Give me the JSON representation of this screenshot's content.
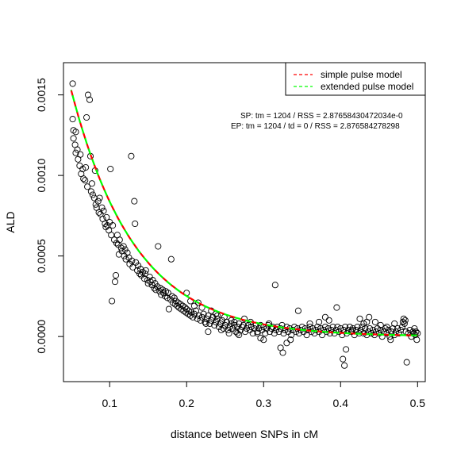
{
  "chart_data": {
    "type": "scatter",
    "xlabel": "distance between SNPs in cM",
    "ylabel": "ALD",
    "xlim": [
      0.04,
      0.51
    ],
    "ylim": [
      -0.00028,
      0.0017
    ],
    "x_ticks": [
      0.1,
      0.2,
      0.3,
      0.4,
      0.5
    ],
    "x_tick_labels": [
      "0.1",
      "0.2",
      "0.3",
      "0.4",
      "0.5"
    ],
    "y_ticks": [
      0.0,
      0.0005,
      0.001,
      0.0015
    ],
    "y_tick_labels": [
      "0.0000",
      "0.0005",
      "0.0010",
      "0.0015"
    ],
    "grid": false,
    "legend_position": "top-right",
    "legend": [
      {
        "label": "simple pulse model",
        "color": "#ff0000",
        "dash": true
      },
      {
        "label": "extended pulse model",
        "color": "#00ff00",
        "dash": true
      }
    ],
    "annotations": [
      "SP:  tm =  1204 / RSS =  2.87658430472034e-0",
      "EP:  tm =  1204 / td =  0 / RSS =  2.876584278298"
    ],
    "model": {
      "a": 0.00153,
      "k": 12.04,
      "c": 0.0
    },
    "points": [
      [
        0.052,
        0.00157
      ],
      [
        0.052,
        0.00135
      ],
      [
        0.053,
        0.00128
      ],
      [
        0.053,
        0.00123
      ],
      [
        0.055,
        0.00119
      ],
      [
        0.056,
        0.00127
      ],
      [
        0.056,
        0.00114
      ],
      [
        0.058,
        0.00116
      ],
      [
        0.059,
        0.0011
      ],
      [
        0.061,
        0.00106
      ],
      [
        0.062,
        0.00113
      ],
      [
        0.063,
        0.00101
      ],
      [
        0.065,
        0.00104
      ],
      [
        0.066,
        0.00098
      ],
      [
        0.068,
        0.00097
      ],
      [
        0.069,
        0.00105
      ],
      [
        0.07,
        0.00136
      ],
      [
        0.071,
        0.00093
      ],
      [
        0.072,
        0.0015
      ],
      [
        0.074,
        0.00147
      ],
      [
        0.075,
        0.00112
      ],
      [
        0.076,
        0.0009
      ],
      [
        0.077,
        0.00095
      ],
      [
        0.078,
        0.00088
      ],
      [
        0.08,
        0.00086
      ],
      [
        0.081,
        0.00103
      ],
      [
        0.082,
        0.00082
      ],
      [
        0.083,
        0.0008
      ],
      [
        0.085,
        0.00084
      ],
      [
        0.086,
        0.00077
      ],
      [
        0.087,
        0.00086
      ],
      [
        0.088,
        0.00076
      ],
      [
        0.09,
        0.0008
      ],
      [
        0.091,
        0.00073
      ],
      [
        0.092,
        0.00078
      ],
      [
        0.094,
        0.0007
      ],
      [
        0.095,
        0.00068
      ],
      [
        0.096,
        0.00074
      ],
      [
        0.097,
        0.00069
      ],
      [
        0.099,
        0.00066
      ],
      [
        0.1,
        0.00071
      ],
      [
        0.101,
        0.00104
      ],
      [
        0.102,
        0.00063
      ],
      [
        0.103,
        0.00022
      ],
      [
        0.104,
        0.00069
      ],
      [
        0.106,
        0.0006
      ],
      [
        0.107,
        0.00034
      ],
      [
        0.108,
        0.00038
      ],
      [
        0.109,
        0.00058
      ],
      [
        0.11,
        0.00063
      ],
      [
        0.111,
        0.00057
      ],
      [
        0.112,
        0.00051
      ],
      [
        0.113,
        0.0006
      ],
      [
        0.115,
        0.00055
      ],
      [
        0.116,
        0.00053
      ],
      [
        0.118,
        0.00056
      ],
      [
        0.119,
        0.0005
      ],
      [
        0.12,
        0.00054
      ],
      [
        0.121,
        0.00048
      ],
      [
        0.123,
        0.00052
      ],
      [
        0.125,
        0.00049
      ],
      [
        0.126,
        0.00045
      ],
      [
        0.128,
        0.00112
      ],
      [
        0.129,
        0.00047
      ],
      [
        0.13,
        0.00043
      ],
      [
        0.132,
        0.00084
      ],
      [
        0.133,
        0.0007
      ],
      [
        0.134,
        0.00046
      ],
      [
        0.136,
        0.00041
      ],
      [
        0.137,
        0.00044
      ],
      [
        0.139,
        0.00039
      ],
      [
        0.14,
        0.00042
      ],
      [
        0.141,
        0.00038
      ],
      [
        0.143,
        0.0004
      ],
      [
        0.145,
        0.00036
      ],
      [
        0.146,
        0.00039
      ],
      [
        0.147,
        0.00041
      ],
      [
        0.149,
        0.00035
      ],
      [
        0.15,
        0.00033
      ],
      [
        0.152,
        0.00037
      ],
      [
        0.153,
        0.00034
      ],
      [
        0.155,
        0.00032
      ],
      [
        0.156,
        0.00035
      ],
      [
        0.158,
        0.0003
      ],
      [
        0.159,
        0.00033
      ],
      [
        0.16,
        0.00029
      ],
      [
        0.162,
        0.00031
      ],
      [
        0.163,
        0.00056
      ],
      [
        0.165,
        0.00028
      ],
      [
        0.166,
        0.0003
      ],
      [
        0.167,
        0.00026
      ],
      [
        0.169,
        0.00029
      ],
      [
        0.17,
        0.00027
      ],
      [
        0.172,
        0.00025
      ],
      [
        0.173,
        0.00028
      ],
      [
        0.175,
        0.00024
      ],
      [
        0.176,
        0.00027
      ],
      [
        0.177,
        0.00017
      ],
      [
        0.179,
        0.00023
      ],
      [
        0.18,
        0.00048
      ],
      [
        0.181,
        0.00025
      ],
      [
        0.182,
        0.00021
      ],
      [
        0.184,
        0.00024
      ],
      [
        0.185,
        0.0002
      ],
      [
        0.186,
        0.00022
      ],
      [
        0.188,
        0.00019
      ],
      [
        0.189,
        0.00021
      ],
      [
        0.19,
        0.00018
      ],
      [
        0.192,
        0.0002
      ],
      [
        0.193,
        0.00017
      ],
      [
        0.195,
        0.00019
      ],
      [
        0.196,
        0.00016
      ],
      [
        0.198,
        0.00018
      ],
      [
        0.199,
        0.00015
      ],
      [
        0.2,
        0.00017
      ],
      [
        0.202,
        0.00014
      ],
      [
        0.203,
        0.00016
      ],
      [
        0.205,
        0.00013
      ],
      [
        0.206,
        0.00015
      ],
      [
        0.208,
        0.00012
      ],
      [
        0.21,
        0.00014
      ],
      [
        0.212,
        0.00016
      ],
      [
        0.214,
        0.00011
      ],
      [
        0.216,
        0.00013
      ],
      [
        0.218,
        0.0001
      ],
      [
        0.22,
        0.00012
      ],
      [
        0.222,
        0.00014
      ],
      [
        0.224,
        9e-05
      ],
      [
        0.226,
        0.00011
      ],
      [
        0.228,
        0.00013
      ],
      [
        0.23,
        8e-05
      ],
      [
        0.232,
        0.0001
      ],
      [
        0.234,
        0.00012
      ],
      [
        0.236,
        7e-05
      ],
      [
        0.238,
        9e-05
      ],
      [
        0.24,
        0.00011
      ],
      [
        0.242,
        6e-05
      ],
      [
        0.244,
        8e-05
      ],
      [
        0.246,
        0.0001
      ],
      [
        0.248,
        5e-05
      ],
      [
        0.25,
        7e-05
      ],
      [
        0.252,
        9e-05
      ],
      [
        0.254,
        4e-05
      ],
      [
        0.256,
        6e-05
      ],
      [
        0.258,
        8e-05
      ],
      [
        0.26,
        5e-05
      ],
      [
        0.262,
        7e-05
      ],
      [
        0.264,
        3e-05
      ],
      [
        0.266,
        6e-05
      ],
      [
        0.268,
        8e-05
      ],
      [
        0.27,
        4e-05
      ],
      [
        0.272,
        6e-05
      ],
      [
        0.274,
        7e-05
      ],
      [
        0.276,
        3e-05
      ],
      [
        0.278,
        5e-05
      ],
      [
        0.28,
        7e-05
      ],
      [
        0.282,
        4e-05
      ],
      [
        0.284,
        6e-05
      ],
      [
        0.286,
        2e-05
      ],
      [
        0.288,
        5e-05
      ],
      [
        0.29,
        7e-05
      ],
      [
        0.292,
        3e-05
      ],
      [
        0.294,
        5e-05
      ],
      [
        0.296,
        7e-05
      ],
      [
        0.298,
        4e-05
      ],
      [
        0.3,
        6e-05
      ],
      [
        0.302,
        2e-05
      ],
      [
        0.304,
        5e-05
      ],
      [
        0.306,
        7e-05
      ],
      [
        0.308,
        3e-05
      ],
      [
        0.31,
        5e-05
      ],
      [
        0.312,
        6e-05
      ],
      [
        0.314,
        2e-05
      ],
      [
        0.316,
        4e-05
      ],
      [
        0.318,
        6e-05
      ],
      [
        0.32,
        3e-05
      ],
      [
        0.322,
        5e-05
      ],
      [
        0.324,
        7e-05
      ],
      [
        0.326,
        2e-05
      ],
      [
        0.328,
        4e-05
      ],
      [
        0.33,
        6e-05
      ],
      [
        0.332,
        3e-05
      ],
      [
        0.334,
        5e-05
      ],
      [
        0.336,
        1e-05
      ],
      [
        0.338,
        4e-05
      ],
      [
        0.34,
        6e-05
      ],
      [
        0.342,
        3e-05
      ],
      [
        0.344,
        5e-05
      ],
      [
        0.346,
        2e-05
      ],
      [
        0.348,
        4e-05
      ],
      [
        0.35,
        6e-05
      ],
      [
        0.352,
        3e-05
      ],
      [
        0.354,
        5e-05
      ],
      [
        0.356,
        1e-05
      ],
      [
        0.358,
        4e-05
      ],
      [
        0.36,
        6e-05
      ],
      [
        0.362,
        3e-05
      ],
      [
        0.364,
        5e-05
      ],
      [
        0.366,
        2e-05
      ],
      [
        0.368,
        4e-05
      ],
      [
        0.37,
        6e-05
      ],
      [
        0.372,
        3e-05
      ],
      [
        0.374,
        5e-05
      ],
      [
        0.376,
        1e-05
      ],
      [
        0.378,
        4e-05
      ],
      [
        0.38,
        6e-05
      ],
      [
        0.382,
        3e-05
      ],
      [
        0.384,
        5e-05
      ],
      [
        0.386,
        2e-05
      ],
      [
        0.388,
        4e-05
      ],
      [
        0.39,
        6e-05
      ],
      [
        0.392,
        2e-05
      ],
      [
        0.394,
        4e-05
      ],
      [
        0.396,
        6e-05
      ],
      [
        0.398,
        3e-05
      ],
      [
        0.4,
        5e-05
      ],
      [
        0.402,
        1e-05
      ],
      [
        0.404,
        4e-05
      ],
      [
        0.406,
        6e-05
      ],
      [
        0.408,
        2e-05
      ],
      [
        0.41,
        4e-05
      ],
      [
        0.412,
        6e-05
      ],
      [
        0.414,
        3e-05
      ],
      [
        0.416,
        5e-05
      ],
      [
        0.418,
        1e-05
      ],
      [
        0.42,
        4e-05
      ],
      [
        0.422,
        6e-05
      ],
      [
        0.424,
        2e-05
      ],
      [
        0.426,
        4e-05
      ],
      [
        0.428,
        6e-05
      ],
      [
        0.43,
        2e-05
      ],
      [
        0.432,
        5e-05
      ],
      [
        0.434,
        1e-05
      ],
      [
        0.436,
        3e-05
      ],
      [
        0.438,
        5e-05
      ],
      [
        0.44,
        2e-05
      ],
      [
        0.442,
        4e-05
      ],
      [
        0.444,
        1e-05
      ],
      [
        0.446,
        3e-05
      ],
      [
        0.448,
        5e-05
      ],
      [
        0.45,
        2e-05
      ],
      [
        0.452,
        4e-05
      ],
      [
        0.454,
        0.0
      ],
      [
        0.456,
        3e-05
      ],
      [
        0.458,
        5e-05
      ],
      [
        0.46,
        2e-05
      ],
      [
        0.462,
        4e-05
      ],
      [
        0.464,
        0.0
      ],
      [
        0.466,
        3e-05
      ],
      [
        0.468,
        5e-05
      ],
      [
        0.47,
        1e-05
      ],
      [
        0.472,
        3e-05
      ],
      [
        0.474,
        5e-05
      ],
      [
        0.476,
        2e-05
      ],
      [
        0.478,
        4e-05
      ],
      [
        0.48,
        6e-05
      ],
      [
        0.481,
        9e-05
      ],
      [
        0.482,
        0.00011
      ],
      [
        0.483,
        8e-05
      ],
      [
        0.484,
        0.0001
      ],
      [
        0.485,
        3e-05
      ],
      [
        0.486,
        -0.00016
      ],
      [
        0.488,
        2e-05
      ],
      [
        0.49,
        4e-05
      ],
      [
        0.492,
        0.0
      ],
      [
        0.494,
        3e-05
      ],
      [
        0.495,
        2e-05
      ],
      [
        0.496,
        5e-05
      ],
      [
        0.497,
        1e-05
      ],
      [
        0.498,
        3e-05
      ],
      [
        0.499,
        -2e-05
      ],
      [
        0.5,
        2e-05
      ],
      [
        0.315,
        0.00032
      ],
      [
        0.322,
        -7e-05
      ],
      [
        0.325,
        -0.0001
      ],
      [
        0.33,
        -4e-05
      ],
      [
        0.335,
        -2e-05
      ],
      [
        0.345,
        0.00016
      ],
      [
        0.36,
        8e-05
      ],
      [
        0.372,
        9e-05
      ],
      [
        0.38,
        0.00012
      ],
      [
        0.385,
        0.0001
      ],
      [
        0.395,
        0.00018
      ],
      [
        0.403,
        -0.00014
      ],
      [
        0.405,
        -0.00018
      ],
      [
        0.407,
        -8e-05
      ],
      [
        0.415,
        4e-05
      ],
      [
        0.425,
        0.00011
      ],
      [
        0.43,
        8e-05
      ],
      [
        0.434,
        9e-05
      ],
      [
        0.437,
        0.00012
      ],
      [
        0.445,
        9e-05
      ],
      [
        0.452,
        7e-05
      ],
      [
        0.46,
        6e-05
      ],
      [
        0.465,
        -2e-05
      ],
      [
        0.47,
        8e-05
      ],
      [
        0.2,
        0.00027
      ],
      [
        0.205,
        0.00022
      ],
      [
        0.21,
        0.00019
      ],
      [
        0.215,
        0.00021
      ],
      [
        0.22,
        0.00018
      ],
      [
        0.225,
        8e-05
      ],
      [
        0.232,
        0.00016
      ],
      [
        0.238,
        0.00014
      ],
      [
        0.245,
        4e-05
      ],
      [
        0.255,
        2e-05
      ],
      [
        0.262,
        9e-05
      ],
      [
        0.268,
        1e-05
      ],
      [
        0.275,
        0.00011
      ],
      [
        0.283,
        9e-05
      ],
      [
        0.292,
        2e-05
      ],
      [
        0.3,
        -2e-05
      ],
      [
        0.307,
        8e-05
      ],
      [
        0.228,
        3e-05
      ],
      [
        0.24,
        0.00013
      ],
      [
        0.249,
        0.00012
      ],
      [
        0.258,
        0.0001
      ],
      [
        0.266,
        2e-05
      ],
      [
        0.296,
        -1e-05
      ]
    ]
  }
}
